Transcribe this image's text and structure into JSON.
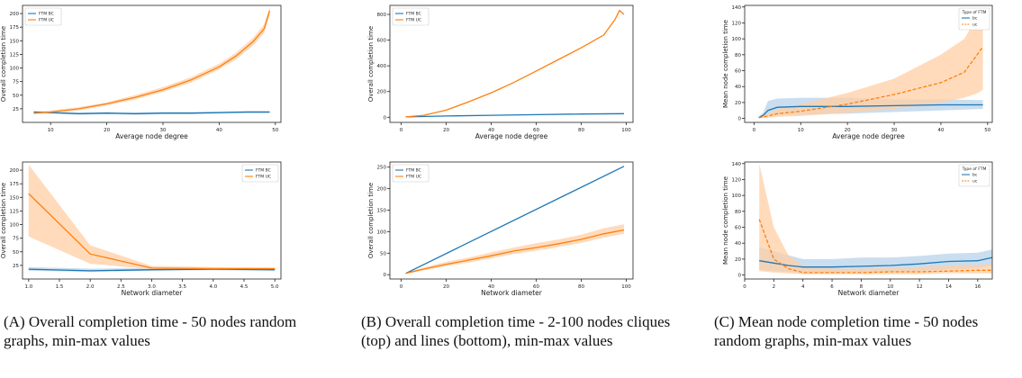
{
  "colors": {
    "bc": "#1f77b4",
    "uc": "#ff7f0e",
    "uc_band": "#ffcfa6",
    "bc_band": "#b8d3ea"
  },
  "captions": [
    {
      "label": "(A)",
      "text": "Overall completion time - 50 nodes random graphs, min-max values"
    },
    {
      "label": "(B)",
      "text": "Overall completion time - 2-100 nodes cliques (top) and lines (bottom), min-max values"
    },
    {
      "label": "(C)",
      "text": "Mean node completion time - 50 nodes random graphs, min-max values"
    }
  ],
  "chart_data": [
    {
      "type": "line",
      "panel": "A-top",
      "xlabel": "Average node degree",
      "ylabel": "Overall completion time",
      "xlim": [
        5,
        51
      ],
      "ylim": [
        0,
        215
      ],
      "xticks": [
        10,
        20,
        30,
        40,
        50
      ],
      "yticks": [
        25,
        50,
        75,
        100,
        125,
        150,
        175,
        200
      ],
      "legend": {
        "placement": "top-left",
        "title": ""
      },
      "series": [
        {
          "name": "FTM BC",
          "color": "#1f77b4",
          "dash": "",
          "x": [
            7,
            10,
            15,
            20,
            25,
            30,
            35,
            40,
            45,
            49
          ],
          "y": [
            19,
            18,
            16,
            17,
            16,
            17,
            17,
            18,
            19,
            19
          ],
          "band": [
            [
              17,
              21
            ],
            [
              16,
              20
            ],
            [
              14,
              18
            ],
            [
              15,
              19
            ],
            [
              14,
              18
            ],
            [
              15,
              19
            ],
            [
              15,
              19
            ],
            [
              16,
              20
            ],
            [
              17,
              21
            ],
            [
              17,
              21
            ]
          ]
        },
        {
          "name": "FTM UC",
          "color": "#ff7f0e",
          "dash": "",
          "x": [
            7,
            10,
            15,
            20,
            25,
            30,
            35,
            40,
            43,
            46,
            48,
            49
          ],
          "y": [
            17,
            19,
            25,
            34,
            46,
            60,
            78,
            102,
            122,
            148,
            172,
            205
          ],
          "band": [
            [
              15,
              19
            ],
            [
              16,
              22
            ],
            [
              22,
              28
            ],
            [
              31,
              37
            ],
            [
              42,
              50
            ],
            [
              56,
              65
            ],
            [
              73,
              83
            ],
            [
              97,
              108
            ],
            [
              116,
              128
            ],
            [
              141,
              155
            ],
            [
              164,
              180
            ],
            [
              197,
              212
            ]
          ]
        }
      ]
    },
    {
      "type": "line",
      "panel": "A-bottom",
      "xlabel": "Network diameter",
      "ylabel": "Overall completion time",
      "xlim": [
        0.9,
        5.1
      ],
      "ylim": [
        0,
        215
      ],
      "xticks": [
        "1.0",
        "1.5",
        "2.0",
        "2.5",
        "3.0",
        "3.5",
        "4.0",
        "4.5",
        "5.0"
      ],
      "yticks": [
        25,
        50,
        75,
        100,
        125,
        150,
        175,
        200
      ],
      "legend": {
        "placement": "top-right",
        "title": ""
      },
      "series": [
        {
          "name": "FTM BC",
          "color": "#1f77b4",
          "dash": "",
          "x": [
            1,
            2,
            3,
            4,
            5
          ],
          "y": [
            18,
            15,
            17,
            18,
            17
          ],
          "band": [
            [
              15,
              22
            ],
            [
              13,
              19
            ],
            [
              15,
              20
            ],
            [
              16,
              21
            ],
            [
              15,
              20
            ]
          ]
        },
        {
          "name": "FTM UC",
          "color": "#ff7f0e",
          "dash": "",
          "x": [
            1,
            2,
            3,
            4,
            5
          ],
          "y": [
            157,
            46,
            20,
            19,
            19
          ],
          "band": [
            [
              78,
              210
            ],
            [
              28,
              62
            ],
            [
              18,
              24
            ],
            [
              17,
              22
            ],
            [
              17,
              21
            ]
          ]
        }
      ]
    },
    {
      "type": "line",
      "panel": "B-top",
      "xlabel": "Average node degree",
      "ylabel": "Overall completion time",
      "xlim": [
        -5,
        103
      ],
      "ylim": [
        -40,
        870
      ],
      "xticks": [
        0,
        20,
        40,
        60,
        80,
        100
      ],
      "yticks": [
        0,
        200,
        400,
        600,
        800
      ],
      "legend": {
        "placement": "top-left",
        "title": ""
      },
      "series": [
        {
          "name": "FTM BC",
          "color": "#1f77b4",
          "dash": "",
          "x": [
            2,
            20,
            40,
            60,
            80,
            99
          ],
          "y": [
            3,
            10,
            15,
            20,
            25,
            28
          ]
        },
        {
          "name": "FTM UC",
          "color": "#ff7f0e",
          "dash": "",
          "x": [
            2,
            10,
            20,
            30,
            40,
            50,
            60,
            70,
            80,
            90,
            95,
            97,
            99
          ],
          "y": [
            3,
            15,
            55,
            120,
            190,
            270,
            360,
            450,
            540,
            640,
            760,
            830,
            800
          ]
        }
      ]
    },
    {
      "type": "line",
      "panel": "B-bottom",
      "xlabel": "Network diameter",
      "ylabel": "Overall completion time",
      "xlim": [
        -5,
        103
      ],
      "ylim": [
        -10,
        262
      ],
      "xticks": [
        0,
        20,
        40,
        60,
        80,
        100
      ],
      "yticks": [
        0,
        50,
        100,
        150,
        200,
        250
      ],
      "legend": {
        "placement": "top-left",
        "title": ""
      },
      "series": [
        {
          "name": "FTM BC",
          "color": "#1f77b4",
          "dash": "",
          "x": [
            2,
            99
          ],
          "y": [
            3,
            252
          ]
        },
        {
          "name": "FTM UC",
          "color": "#ff7f0e",
          "dash": "",
          "x": [
            2,
            10,
            20,
            30,
            40,
            50,
            60,
            70,
            80,
            90,
            99
          ],
          "y": [
            3,
            13,
            24,
            34,
            44,
            55,
            63,
            72,
            82,
            95,
            104
          ],
          "band": [
            [
              2,
              5
            ],
            [
              10,
              17
            ],
            [
              20,
              30
            ],
            [
              28,
              40
            ],
            [
              38,
              52
            ],
            [
              48,
              63
            ],
            [
              56,
              73
            ],
            [
              64,
              82
            ],
            [
              74,
              93
            ],
            [
              86,
              108
            ],
            [
              95,
              117
            ]
          ]
        }
      ]
    },
    {
      "type": "line",
      "panel": "C-top",
      "xlabel": "Average node degree",
      "ylabel": "Mean node completion time",
      "xlim": [
        -2,
        51
      ],
      "ylim": [
        -5,
        142
      ],
      "xticks": [
        0,
        10,
        20,
        30,
        40,
        50
      ],
      "yticks": [
        0,
        20,
        40,
        60,
        80,
        100,
        120,
        140
      ],
      "legend": {
        "placement": "top-right",
        "title": "Type of FTM"
      },
      "series": [
        {
          "name": "bc",
          "color": "#1f77b4",
          "dash": "",
          "x": [
            1,
            2,
            3,
            5,
            10,
            20,
            30,
            40,
            49
          ],
          "y": [
            1,
            4,
            10,
            14,
            15,
            15,
            16,
            17,
            17
          ],
          "band": [
            [
              0,
              2
            ],
            [
              2,
              8
            ],
            [
              5,
              22
            ],
            [
              4,
              25
            ],
            [
              5,
              26
            ],
            [
              6,
              26
            ],
            [
              8,
              24
            ],
            [
              10,
              24
            ],
            [
              12,
              23
            ]
          ]
        },
        {
          "name": "uc",
          "color": "#ff7f0e",
          "dash": "4,2",
          "x": [
            1,
            3,
            5,
            10,
            20,
            30,
            40,
            45,
            48,
            49
          ],
          "y": [
            1,
            3,
            6,
            9,
            18,
            30,
            45,
            58,
            82,
            90
          ],
          "band": [
            [
              0,
              2
            ],
            [
              1,
              6
            ],
            [
              2,
              12
            ],
            [
              3,
              18
            ],
            [
              7,
              32
            ],
            [
              12,
              50
            ],
            [
              20,
              80
            ],
            [
              26,
              100
            ],
            [
              32,
              130
            ],
            [
              36,
              135
            ]
          ]
        }
      ]
    },
    {
      "type": "line",
      "panel": "C-bottom",
      "xlabel": "Network diameter",
      "ylabel": "Mean node completion time",
      "xlim": [
        0,
        17
      ],
      "ylim": [
        -5,
        142
      ],
      "xticks": [
        0,
        2,
        4,
        6,
        8,
        10,
        12,
        14,
        16
      ],
      "yticks": [
        0,
        20,
        40,
        60,
        80,
        100,
        120,
        140
      ],
      "legend": {
        "placement": "top-right",
        "title": "Type of FTM"
      },
      "series": [
        {
          "name": "bc",
          "color": "#1f77b4",
          "dash": "",
          "x": [
            1,
            2,
            3,
            4,
            6,
            8,
            10,
            12,
            14,
            16,
            17
          ],
          "y": [
            18,
            15,
            12,
            10,
            10,
            11,
            12,
            14,
            17,
            18,
            22
          ],
          "band": [
            [
              6,
              35
            ],
            [
              5,
              30
            ],
            [
              4,
              25
            ],
            [
              3,
              20
            ],
            [
              3,
              20
            ],
            [
              4,
              22
            ],
            [
              4,
              22
            ],
            [
              5,
              24
            ],
            [
              7,
              27
            ],
            [
              8,
              28
            ],
            [
              12,
              32
            ]
          ]
        },
        {
          "name": "uc",
          "color": "#ff7f0e",
          "dash": "4,2",
          "x": [
            1,
            2,
            3,
            4,
            6,
            8,
            10,
            12,
            14,
            16,
            17
          ],
          "y": [
            70,
            20,
            8,
            3,
            3,
            3,
            4,
            4,
            5,
            6,
            6
          ],
          "band": [
            [
              5,
              140
            ],
            [
              3,
              60
            ],
            [
              2,
              25
            ],
            [
              1,
              12
            ],
            [
              1,
              8
            ],
            [
              1,
              8
            ],
            [
              1,
              9
            ],
            [
              1,
              10
            ],
            [
              2,
              12
            ],
            [
              2,
              13
            ],
            [
              2,
              14
            ]
          ]
        }
      ]
    }
  ]
}
